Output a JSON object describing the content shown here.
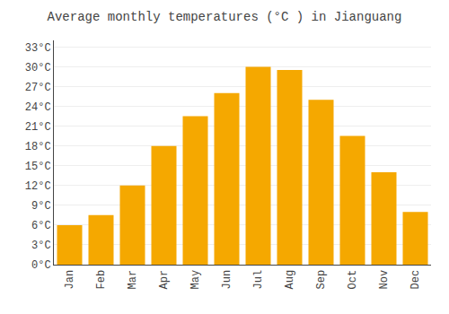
{
  "chart_data": {
    "type": "bar",
    "title": "Average monthly temperatures (°C ) in Jianguang",
    "categories": [
      "Jan",
      "Feb",
      "Mar",
      "Apr",
      "May",
      "Jun",
      "Jul",
      "Aug",
      "Sep",
      "Oct",
      "Nov",
      "Dec"
    ],
    "values": [
      6,
      7.5,
      12,
      18,
      22.5,
      26,
      30,
      29.5,
      25,
      19.5,
      14,
      8
    ],
    "color": "#F5A800",
    "ylim": [
      0,
      34
    ],
    "yticks": [
      {
        "value": 0,
        "label": "0°C"
      },
      {
        "value": 3,
        "label": "3°C"
      },
      {
        "value": 6,
        "label": "6°C"
      },
      {
        "value": 9,
        "label": "9°C"
      },
      {
        "value": 12,
        "label": "12°C"
      },
      {
        "value": 15,
        "label": "15°C"
      },
      {
        "value": 18,
        "label": "18°C"
      },
      {
        "value": 21,
        "label": "21°C"
      },
      {
        "value": 24,
        "label": "24°C"
      },
      {
        "value": 27,
        "label": "27°C"
      },
      {
        "value": 30,
        "label": "30°C"
      },
      {
        "value": 33,
        "label": "33°C"
      }
    ],
    "grid": true
  }
}
